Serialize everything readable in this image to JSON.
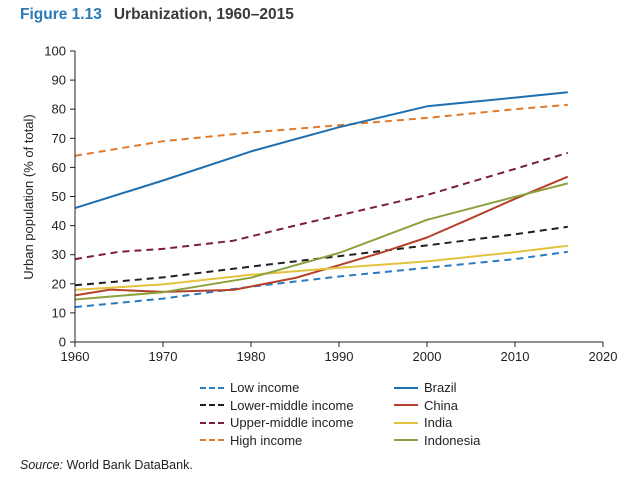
{
  "header": {
    "figure_label": "Figure 1.13",
    "title": "Urbanization, 1960–2015"
  },
  "source": {
    "prefix": "Source:",
    "text": " World Bank DataBank."
  },
  "chart_data": {
    "type": "line",
    "title": "Urbanization, 1960–2015",
    "xlabel": "",
    "ylabel": "Urban population (% of total)",
    "xlim": [
      1960,
      2020
    ],
    "ylim": [
      0,
      100
    ],
    "x_ticks": [
      1960,
      1970,
      1980,
      1990,
      2000,
      2010,
      2020
    ],
    "y_ticks": [
      0,
      10,
      20,
      30,
      40,
      50,
      60,
      70,
      80,
      90,
      100
    ],
    "grid": false,
    "legend_position": "bottom",
    "series": [
      {
        "name": "Low income",
        "color": "#2b7bc0",
        "dashed": true,
        "points": [
          [
            1960,
            12
          ],
          [
            1970,
            14.9
          ],
          [
            1980,
            19
          ],
          [
            1990,
            22.5
          ],
          [
            2000,
            25.5
          ],
          [
            2010,
            28.5
          ],
          [
            2016,
            31
          ]
        ]
      },
      {
        "name": "Lower-middle income",
        "color": "#231f20",
        "dashed": true,
        "points": [
          [
            1960,
            19.5
          ],
          [
            1970,
            22.2
          ],
          [
            1980,
            25.9
          ],
          [
            1990,
            29.5
          ],
          [
            2000,
            33.2
          ],
          [
            2010,
            37
          ],
          [
            2016,
            39.6
          ]
        ]
      },
      {
        "name": "Upper-middle income",
        "color": "#7a1e3c",
        "dashed": true,
        "points": [
          [
            1960,
            28.5
          ],
          [
            1965,
            31
          ],
          [
            1970,
            32
          ],
          [
            1978,
            34.8
          ],
          [
            1985,
            40
          ],
          [
            1990,
            43.5
          ],
          [
            2000,
            50.5
          ],
          [
            2010,
            59.5
          ],
          [
            2016,
            65
          ]
        ]
      },
      {
        "name": "High income",
        "color": "#e07a2a",
        "dashed": true,
        "points": [
          [
            1960,
            64
          ],
          [
            1970,
            69
          ],
          [
            1980,
            72
          ],
          [
            1990,
            74.5
          ],
          [
            2000,
            77
          ],
          [
            2010,
            80
          ],
          [
            2016,
            81.5
          ]
        ]
      },
      {
        "name": "Brazil",
        "color": "#1e6fb0",
        "dashed": false,
        "points": [
          [
            1960,
            46
          ],
          [
            1970,
            55.5
          ],
          [
            1980,
            65.5
          ],
          [
            1990,
            73.8
          ],
          [
            2000,
            81
          ],
          [
            2010,
            84
          ],
          [
            2016,
            85.8
          ]
        ]
      },
      {
        "name": "China",
        "color": "#b5412b",
        "dashed": false,
        "points": [
          [
            1960,
            16
          ],
          [
            1964,
            18
          ],
          [
            1970,
            17.2
          ],
          [
            1978,
            17.9
          ],
          [
            1985,
            22
          ],
          [
            1990,
            26.4
          ],
          [
            1995,
            30.9
          ],
          [
            2000,
            35.9
          ],
          [
            2005,
            42.5
          ],
          [
            2010,
            49.2
          ],
          [
            2016,
            56.8
          ]
        ]
      },
      {
        "name": "India",
        "color": "#e3c33e",
        "dashed": false,
        "points": [
          [
            1960,
            17.9
          ],
          [
            1970,
            19.8
          ],
          [
            1980,
            23.1
          ],
          [
            1990,
            25.5
          ],
          [
            2000,
            27.7
          ],
          [
            2010,
            30.9
          ],
          [
            2016,
            33.1
          ]
        ]
      },
      {
        "name": "Indonesia",
        "color": "#8aa13e",
        "dashed": false,
        "points": [
          [
            1960,
            14.6
          ],
          [
            1970,
            17.1
          ],
          [
            1980,
            22.1
          ],
          [
            1990,
            30.6
          ],
          [
            2000,
            42
          ],
          [
            2010,
            49.9
          ],
          [
            2016,
            54.5
          ]
        ]
      }
    ]
  }
}
